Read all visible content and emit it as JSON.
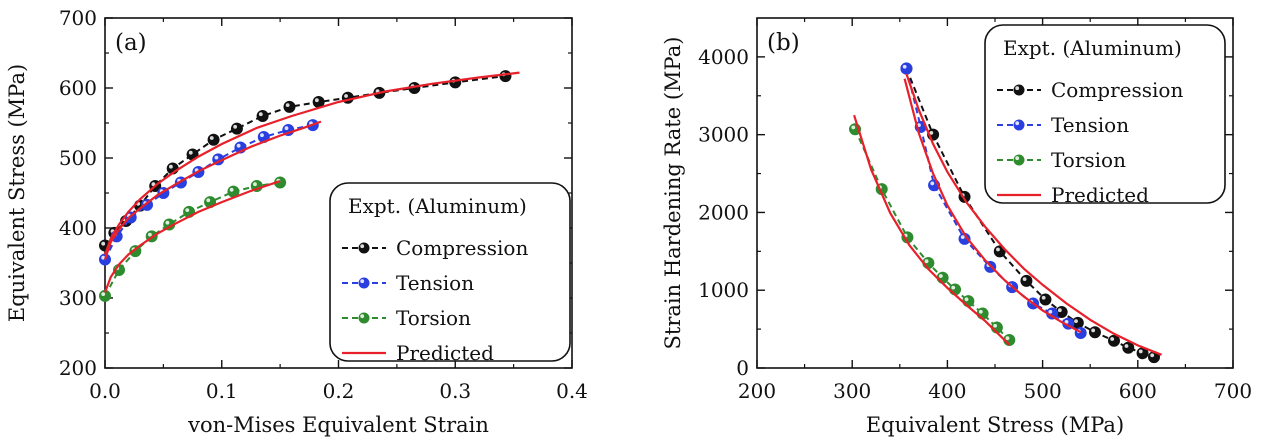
{
  "chart_data": [
    {
      "panel_label": "(a)",
      "type": "line",
      "xlabel": "von-Mises Equivalent Strain",
      "ylabel": "Equivalent Stress (MPa)",
      "xlim": [
        0.0,
        0.4
      ],
      "ylim": [
        200,
        700
      ],
      "xticks": [
        0.0,
        0.1,
        0.2,
        0.3,
        0.4
      ],
      "xtick_labels": [
        "0.0",
        "0.1",
        "0.2",
        "0.3",
        "0.4"
      ],
      "yticks": [
        200,
        300,
        400,
        500,
        600,
        700
      ],
      "ytick_labels": [
        "200",
        "300",
        "400",
        "500",
        "600",
        "700"
      ],
      "legend_title": "Expt. (Aluminum)",
      "legend_position": "bottom-right",
      "grid": false,
      "series": [
        {
          "name": "Compression",
          "kind": "experiment",
          "color": "#111111",
          "dash": "dashed",
          "x": [
            0.0,
            0.008,
            0.018,
            0.03,
            0.043,
            0.058,
            0.075,
            0.093,
            0.113,
            0.135,
            0.158,
            0.183,
            0.208,
            0.235,
            0.265,
            0.3,
            0.343
          ],
          "y": [
            375,
            393,
            410,
            432,
            460,
            485,
            505,
            526,
            542,
            560,
            573,
            580,
            586,
            593,
            600,
            608,
            617
          ]
        },
        {
          "name": "Tension",
          "kind": "experiment",
          "color": "#2a3fe0",
          "dash": "dashed",
          "x": [
            0.0,
            0.01,
            0.022,
            0.036,
            0.05,
            0.065,
            0.08,
            0.097,
            0.116,
            0.136,
            0.157,
            0.178
          ],
          "y": [
            355,
            388,
            415,
            433,
            450,
            465,
            480,
            498,
            515,
            530,
            540,
            547
          ]
        },
        {
          "name": "Torsion",
          "kind": "experiment",
          "color": "#2e8b2e",
          "dash": "dashed",
          "x": [
            0.0,
            0.012,
            0.026,
            0.04,
            0.055,
            0.072,
            0.09,
            0.11,
            0.13,
            0.15
          ],
          "y": [
            303,
            340,
            367,
            388,
            405,
            423,
            437,
            452,
            460,
            465
          ]
        },
        {
          "name": "Predicted",
          "kind": "model",
          "color": "#e8202a",
          "dash": "solid",
          "curves": [
            {
              "x": [
                0.0,
                0.005,
                0.012,
                0.02,
                0.03,
                0.045,
                0.06,
                0.08,
                0.1,
                0.13,
                0.16,
                0.2,
                0.24,
                0.28,
                0.32,
                0.355
              ],
              "y": [
                362,
                385,
                405,
                423,
                441,
                463,
                481,
                502,
                520,
                543,
                560,
                580,
                595,
                606,
                615,
                622
              ]
            },
            {
              "x": [
                0.0,
                0.005,
                0.012,
                0.02,
                0.03,
                0.045,
                0.06,
                0.08,
                0.1,
                0.125,
                0.15,
                0.17,
                0.185
              ],
              "y": [
                355,
                380,
                398,
                414,
                428,
                447,
                462,
                481,
                497,
                516,
                532,
                543,
                552
              ]
            },
            {
              "x": [
                0.0,
                0.005,
                0.012,
                0.02,
                0.03,
                0.045,
                0.06,
                0.08,
                0.1,
                0.125,
                0.15
              ],
              "y": [
                308,
                330,
                348,
                362,
                375,
                392,
                406,
                423,
                437,
                453,
                467
              ]
            }
          ]
        }
      ]
    },
    {
      "panel_label": "(b)",
      "type": "line",
      "xlabel": "Equivalent Stress (MPa)",
      "ylabel": "Strain Hardening Rate (MPa)",
      "xlim": [
        200,
        700
      ],
      "ylim": [
        0,
        4500
      ],
      "xticks": [
        200,
        300,
        400,
        500,
        600,
        700
      ],
      "xtick_labels": [
        "200",
        "300",
        "400",
        "500",
        "600",
        "700"
      ],
      "yticks": [
        0,
        1000,
        2000,
        3000,
        4000
      ],
      "ytick_labels": [
        "0",
        "1000",
        "2000",
        "3000",
        "4000"
      ],
      "legend_title": "Expt. (Aluminum)",
      "legend_position": "top-right",
      "grid": false,
      "series": [
        {
          "name": "Compression",
          "kind": "experiment",
          "color": "#111111",
          "dash": "dashed",
          "x": [
            357,
            385,
            418,
            455,
            483,
            503,
            520,
            537,
            555,
            575,
            590,
            605,
            617
          ],
          "y": [
            3850,
            3000,
            2200,
            1500,
            1120,
            880,
            720,
            580,
            460,
            350,
            260,
            190,
            140
          ]
        },
        {
          "name": "Tension",
          "kind": "experiment",
          "color": "#2a3fe0",
          "dash": "dashed",
          "x": [
            357,
            372,
            386,
            418,
            445,
            468,
            490,
            510,
            527,
            540
          ],
          "y": [
            3850,
            3100,
            2350,
            1660,
            1300,
            1040,
            830,
            700,
            570,
            450
          ]
        },
        {
          "name": "Torsion",
          "kind": "experiment",
          "color": "#2e8b2e",
          "dash": "dashed",
          "x": [
            303,
            331,
            358,
            380,
            395,
            408,
            422,
            437,
            452,
            465
          ],
          "y": [
            3070,
            2300,
            1680,
            1350,
            1160,
            1010,
            860,
            700,
            520,
            360
          ]
        },
        {
          "name": "Predicted",
          "kind": "model",
          "color": "#e8202a",
          "dash": "solid",
          "curves": [
            {
              "x": [
                357,
                370,
                385,
                400,
                420,
                440,
                460,
                480,
                500,
                525,
                550,
                575,
                600,
                625
              ],
              "y": [
                3780,
                3320,
                2880,
                2520,
                2130,
                1810,
                1530,
                1280,
                1070,
                830,
                620,
                440,
                290,
                170
              ]
            },
            {
              "x": [
                355,
                370,
                385,
                400,
                420,
                440,
                460,
                480,
                500,
                520,
                540
              ],
              "y": [
                3720,
                3020,
                2500,
                2090,
                1680,
                1380,
                1130,
                920,
                740,
                590,
                460
              ]
            },
            {
              "x": [
                302,
                320,
                340,
                360,
                380,
                400,
                420,
                440,
                465
              ],
              "y": [
                3250,
                2550,
                1990,
                1580,
                1270,
                1030,
                810,
                600,
                300
              ]
            }
          ]
        }
      ]
    }
  ]
}
